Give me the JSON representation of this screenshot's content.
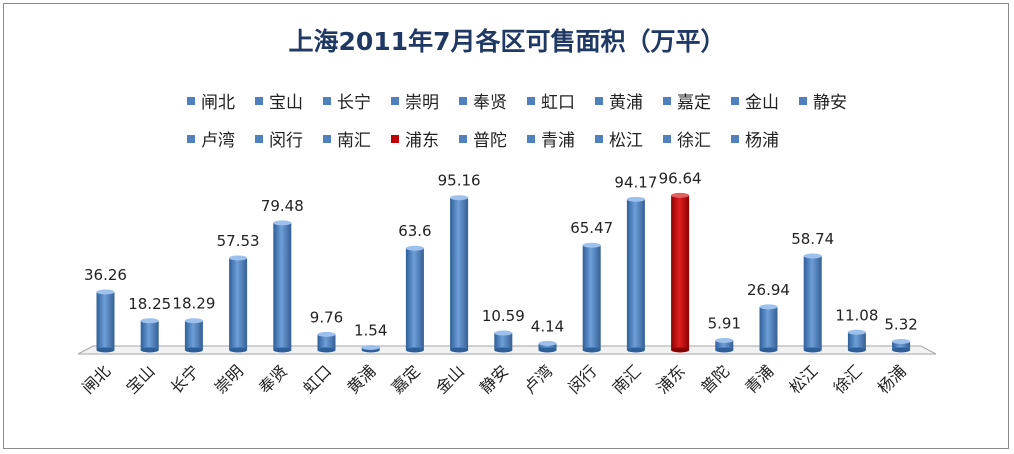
{
  "chart_data": {
    "type": "bar",
    "title": "上海2011年7月各区可售面积（万平）",
    "categories": [
      "闸北",
      "宝山",
      "长宁",
      "崇明",
      "奉贤",
      "虹口",
      "黄浦",
      "嘉定",
      "金山",
      "静安",
      "卢湾",
      "闵行",
      "南汇",
      "浦东",
      "普陀",
      "青浦",
      "松江",
      "徐汇",
      "杨浦"
    ],
    "values": [
      36.26,
      18.25,
      18.29,
      57.53,
      79.48,
      9.76,
      1.54,
      63.6,
      95.16,
      10.59,
      4.14,
      65.47,
      94.17,
      96.64,
      5.91,
      26.94,
      58.74,
      11.08,
      5.32
    ],
    "value_labels": [
      "36.26",
      "18.25",
      "18.29",
      "57.53",
      "79.48",
      "9.76",
      "1.54",
      "63.6",
      "95.16",
      "10.59",
      "4.14",
      "65.47",
      "94.17",
      "96.64",
      "5.91",
      "26.94",
      "58.74",
      "11.08",
      "5.32"
    ],
    "highlight_category": "浦东",
    "colors": {
      "default": "#4f81bd",
      "highlight": "#c00000"
    },
    "legend_position": "top",
    "grid": false,
    "ylim": [
      0,
      100
    ]
  }
}
